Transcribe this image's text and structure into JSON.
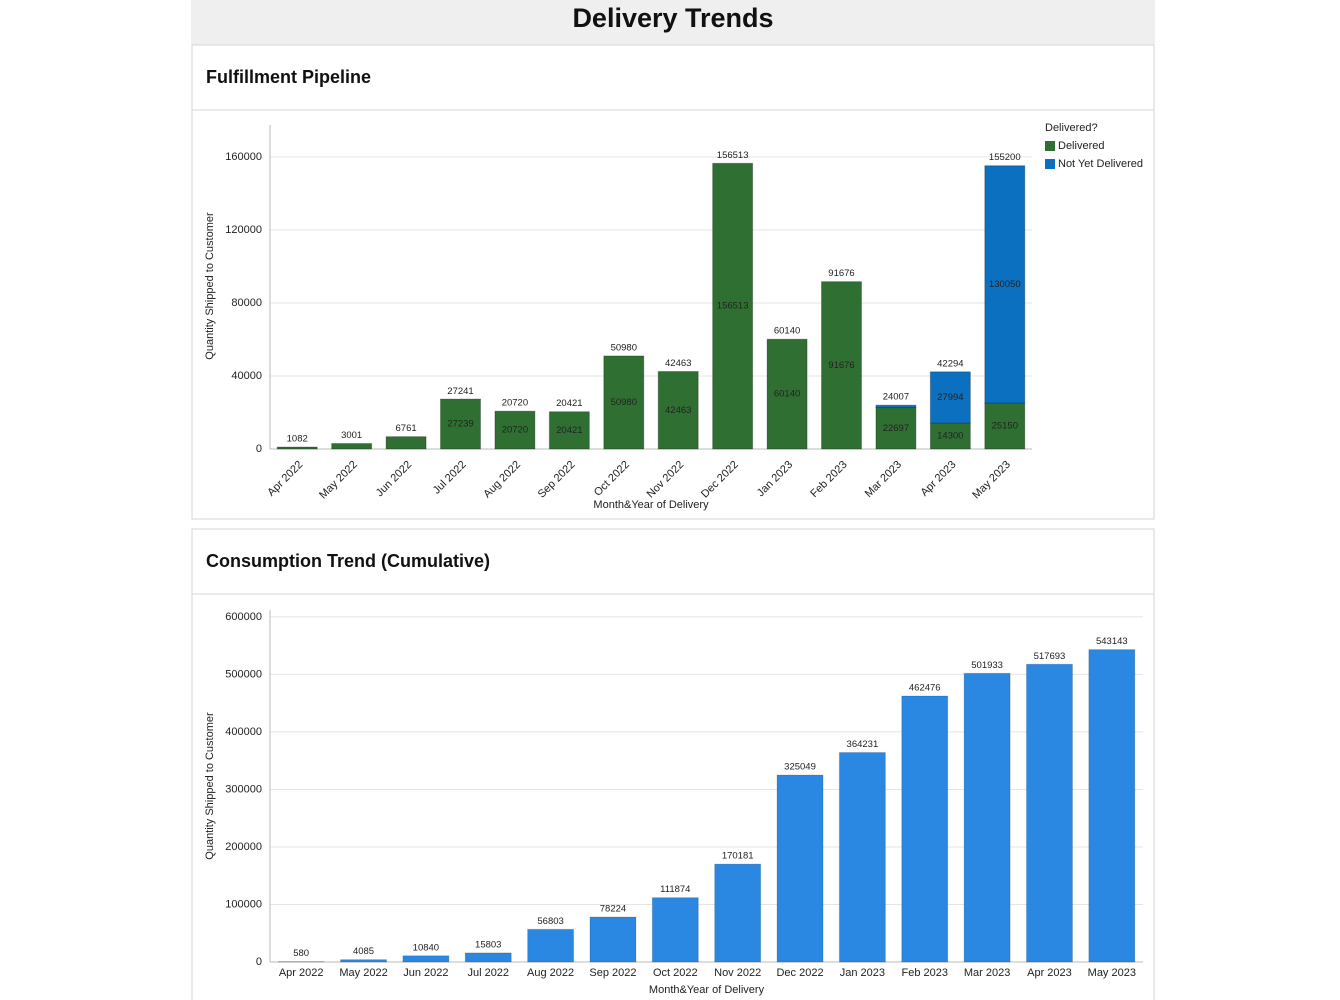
{
  "title": "Delivery Trends",
  "chart_data": [
    {
      "type": "stacked_bar",
      "title": "Fulfillment Pipeline",
      "x_label": "Month&Year of Delivery",
      "y_label": "Quantity Shipped to Customer",
      "categories": [
        "Apr 2022",
        "May 2022",
        "Jun 2022",
        "Jul 2022",
        "Aug 2022",
        "Sep 2022",
        "Oct 2022",
        "Nov 2022",
        "Dec 2022",
        "Jan 2023",
        "Feb 2023",
        "Mar 2023",
        "Apr 2023",
        "May 2023"
      ],
      "series": [
        {
          "name": "Delivered",
          "color": "#2f7032",
          "values": [
            1082,
            3001,
            6761,
            27239,
            20720,
            20421,
            50980,
            42463,
            156513,
            60140,
            91676,
            22697,
            14300,
            25150
          ]
        },
        {
          "name": "Not Yet Delivered",
          "color": "#0b70bf",
          "values": [
            null,
            null,
            null,
            2,
            null,
            null,
            null,
            null,
            null,
            null,
            null,
            1310,
            27994,
            130050
          ]
        }
      ],
      "totals": [
        1082,
        3001,
        6761,
        27241,
        20720,
        20421,
        50980,
        42463,
        156513,
        60140,
        91676,
        24007,
        42294,
        155200
      ],
      "legend_title": "Delivered?",
      "legend": "top-right",
      "ylim": [
        0,
        177500
      ],
      "yticks": [
        0,
        40000,
        80000,
        120000,
        160000
      ],
      "grid": true
    },
    {
      "type": "bar",
      "title": "Consumption Trend (Cumulative)",
      "x_label": "Month&Year of Delivery",
      "y_label": "Quantity Shipped to Customer",
      "categories": [
        "Apr 2022",
        "May 2022",
        "Jun 2022",
        "Jul 2022",
        "Aug 2022",
        "Sep 2022",
        "Oct 2022",
        "Nov 2022",
        "Dec 2022",
        "Jan 2023",
        "Feb 2023",
        "Mar 2023",
        "Apr 2023",
        "May 2023"
      ],
      "values": [
        580,
        4085,
        10840,
        15803,
        56803,
        78224,
        111874,
        170181,
        325049,
        364231,
        462476,
        501933,
        517693,
        543143
      ],
      "color": "#2a88e3",
      "ylim": [
        0,
        612000
      ],
      "yticks": [
        0,
        100000,
        200000,
        300000,
        400000,
        500000,
        600000
      ],
      "grid": true
    }
  ]
}
